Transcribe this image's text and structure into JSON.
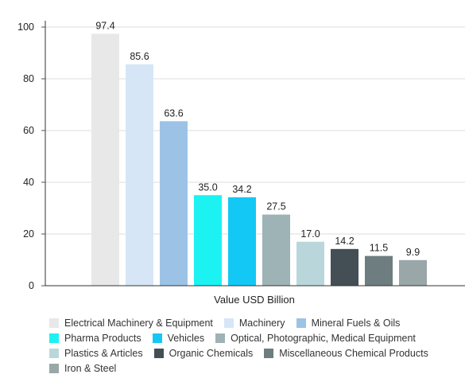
{
  "chart_data": {
    "type": "bar",
    "xlabel": "Value USD Billion",
    "ylim": [
      0,
      100
    ],
    "yticks": [
      0,
      20,
      40,
      60,
      80,
      100
    ],
    "grid": "horizontal",
    "legend_position": "bottom",
    "series": [
      {
        "name": "Electrical Machinery & Equipment",
        "value": 97.4,
        "label": "97.4",
        "color": "#e8e8e8"
      },
      {
        "name": "Machinery",
        "value": 85.6,
        "label": "85.6",
        "color": "#d6e6f7"
      },
      {
        "name": "Mineral Fuels & Oils",
        "value": 63.6,
        "label": "63.6",
        "color": "#9cc3e6"
      },
      {
        "name": "Pharma Products",
        "value": 35.0,
        "label": "35.0",
        "color": "#1cf2f2"
      },
      {
        "name": "Vehicles",
        "value": 34.2,
        "label": "34.2",
        "color": "#14c8f5"
      },
      {
        "name": "Optical, Photographic, Medical Equipment",
        "value": 27.5,
        "label": "27.5",
        "color": "#9db3b5"
      },
      {
        "name": "Plastics & Articles",
        "value": 17.0,
        "label": "17.0",
        "color": "#b9d7da"
      },
      {
        "name": "Organic Chemicals",
        "value": 14.2,
        "label": "14.2",
        "color": "#434f55"
      },
      {
        "name": "Miscellaneous Chemical Products",
        "value": 11.5,
        "label": "11.5",
        "color": "#6e7d7f"
      },
      {
        "name": "Iron & Steel",
        "value": 9.9,
        "label": "9.9",
        "color": "#9aa7a9"
      }
    ]
  }
}
